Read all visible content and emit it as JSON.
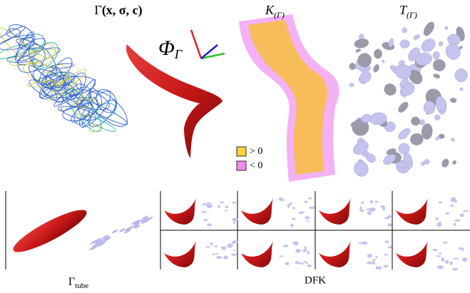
{
  "top_labels": {
    "gamma": {
      "base": "Γ",
      "args": "(x, σ, c)"
    },
    "phi": {
      "base": "Φ",
      "sub": "Γ"
    },
    "k": {
      "base": "K",
      "sub": "(Γ)"
    },
    "t": {
      "base": "T",
      "sub": "(Γ)"
    }
  },
  "legend": [
    {
      "symbol": "> 0",
      "color": "#f7d440"
    },
    {
      "symbol": "< 0",
      "color": "#f08cf0"
    }
  ],
  "bottom_labels": {
    "tube": {
      "base": "Γ",
      "sub": "tube"
    },
    "dfk": "DFK"
  }
}
